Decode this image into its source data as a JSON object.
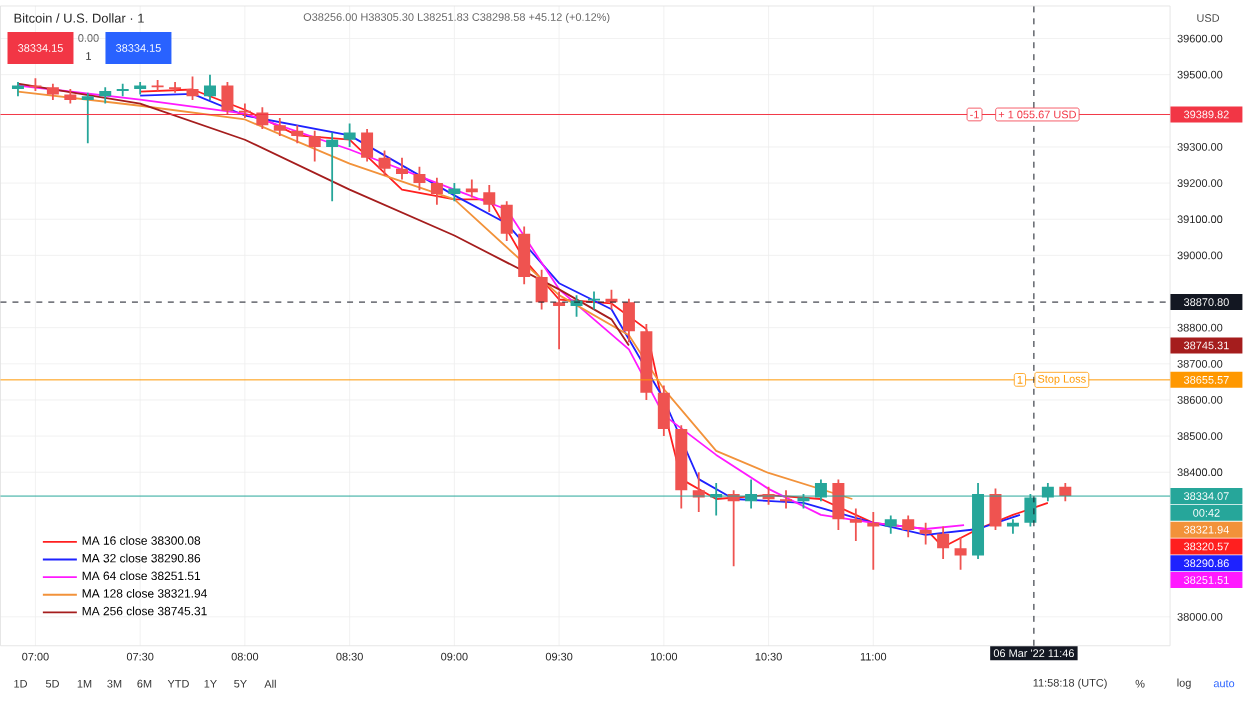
{
  "chart_data": {
    "type": "candlestick",
    "title": "Bitcoin / U.S. Dollar · 1",
    "x": [
      "2022-03-06T06:55",
      "2022-03-06T07:00",
      "2022-03-06T07:05",
      "2022-03-06T07:10",
      "2022-03-06T07:15",
      "2022-03-06T07:20",
      "2022-03-06T07:25",
      "2022-03-06T07:30",
      "2022-03-06T07:35",
      "2022-03-06T07:40",
      "2022-03-06T07:45",
      "2022-03-06T07:50",
      "2022-03-06T07:55",
      "2022-03-06T08:00",
      "2022-03-06T08:05",
      "2022-03-06T08:10",
      "2022-03-06T08:15",
      "2022-03-06T08:20",
      "2022-03-06T08:25",
      "2022-03-06T08:30",
      "2022-03-06T08:35",
      "2022-03-06T08:40",
      "2022-03-06T08:45",
      "2022-03-06T08:50",
      "2022-03-06T08:55",
      "2022-03-06T09:00",
      "2022-03-06T09:05",
      "2022-03-06T09:10",
      "2022-03-06T09:15",
      "2022-03-06T09:20",
      "2022-03-06T09:25",
      "2022-03-06T09:30",
      "2022-03-06T09:35",
      "2022-03-06T09:40",
      "2022-03-06T09:45",
      "2022-03-06T09:50",
      "2022-03-06T09:55",
      "2022-03-06T10:00",
      "2022-03-06T10:05",
      "2022-03-06T10:10",
      "2022-03-06T10:15",
      "2022-03-06T10:20",
      "2022-03-06T10:25",
      "2022-03-06T10:30",
      "2022-03-06T10:35",
      "2022-03-06T10:40",
      "2022-03-06T10:45",
      "2022-03-06T10:50",
      "2022-03-06T10:55",
      "2022-03-06T11:00",
      "2022-03-06T11:05",
      "2022-03-06T11:10",
      "2022-03-06T11:15",
      "2022-03-06T11:20",
      "2022-03-06T11:25",
      "2022-03-06T11:30",
      "2022-03-06T11:35",
      "2022-03-06T11:40",
      "2022-03-06T11:45",
      "2022-03-06T11:50",
      "2022-03-06T11:55"
    ],
    "ohlc": [
      [
        39460,
        39480,
        39440,
        39470
      ],
      [
        39470,
        39490,
        39455,
        39465
      ],
      [
        39465,
        39475,
        39430,
        39445
      ],
      [
        39445,
        39460,
        39420,
        39430
      ],
      [
        39430,
        39450,
        39310,
        39440
      ],
      [
        39440,
        39465,
        39420,
        39455
      ],
      [
        39455,
        39475,
        39440,
        39460
      ],
      [
        39460,
        39480,
        39445,
        39470
      ],
      [
        39470,
        39485,
        39455,
        39465
      ],
      [
        39465,
        39480,
        39450,
        39460
      ],
      [
        39460,
        39495,
        39430,
        39440
      ],
      [
        39440,
        39500,
        39430,
        39470
      ],
      [
        39470,
        39480,
        39390,
        39400
      ],
      [
        39400,
        39420,
        39380,
        39395
      ],
      [
        39395,
        39410,
        39350,
        39360
      ],
      [
        39360,
        39380,
        39330,
        39345
      ],
      [
        39345,
        39360,
        39310,
        39330
      ],
      [
        39330,
        39345,
        39260,
        39300
      ],
      [
        39300,
        39340,
        39150,
        39320
      ],
      [
        39320,
        39365,
        39300,
        39340
      ],
      [
        39340,
        39350,
        39260,
        39270
      ],
      [
        39270,
        39290,
        39220,
        39240
      ],
      [
        39240,
        39270,
        39210,
        39225
      ],
      [
        39225,
        39245,
        39180,
        39200
      ],
      [
        39200,
        39215,
        39140,
        39170
      ],
      [
        39170,
        39200,
        39150,
        39185
      ],
      [
        39185,
        39210,
        39160,
        39175
      ],
      [
        39175,
        39195,
        39120,
        39140
      ],
      [
        39140,
        39150,
        39040,
        39060
      ],
      [
        39060,
        39080,
        38920,
        38940
      ],
      [
        38940,
        38960,
        38850,
        38870
      ],
      [
        38870,
        38900,
        38740,
        38860
      ],
      [
        38860,
        38890,
        38830,
        38875
      ],
      [
        38875,
        38900,
        38850,
        38880
      ],
      [
        38880,
        38905,
        38850,
        38870
      ],
      [
        38870,
        38880,
        38760,
        38790
      ],
      [
        38790,
        38810,
        38600,
        38620
      ],
      [
        38620,
        38640,
        38500,
        38520
      ],
      [
        38520,
        38530,
        38300,
        38350
      ],
      [
        38350,
        38400,
        38290,
        38330
      ],
      [
        38330,
        38370,
        38280,
        38340
      ],
      [
        38340,
        38350,
        38140,
        38320
      ],
      [
        38320,
        38380,
        38300,
        38340
      ],
      [
        38340,
        38360,
        38310,
        38325
      ],
      [
        38325,
        38350,
        38300,
        38320
      ],
      [
        38320,
        38340,
        38300,
        38330
      ],
      [
        38330,
        38380,
        38320,
        38370
      ],
      [
        38370,
        38380,
        38240,
        38270
      ],
      [
        38270,
        38300,
        38210,
        38260
      ],
      [
        38260,
        38290,
        38130,
        38250
      ],
      [
        38250,
        38280,
        38230,
        38270
      ],
      [
        38270,
        38280,
        38220,
        38240
      ],
      [
        38240,
        38260,
        38200,
        38230
      ],
      [
        38230,
        38250,
        38160,
        38190
      ],
      [
        38190,
        38220,
        38130,
        38170
      ],
      [
        38170,
        38370,
        38160,
        38340
      ],
      [
        38340,
        38355,
        38240,
        38250
      ],
      [
        38250,
        38270,
        38230,
        38260
      ],
      [
        38260,
        38340,
        38250,
        38330
      ],
      [
        38330,
        38370,
        38320,
        38360
      ],
      [
        38360,
        38370,
        38320,
        38334.07
      ]
    ],
    "series": [
      {
        "name": "MA 16 close 38300.08",
        "type": "line",
        "color": "#ff1f1f",
        "x": [
          "2022-03-06T07:30",
          "2022-03-06T07:45",
          "2022-03-06T08:00",
          "2022-03-06T08:15",
          "2022-03-06T08:30",
          "2022-03-06T08:45",
          "2022-03-06T09:00",
          "2022-03-06T09:10",
          "2022-03-06T09:20",
          "2022-03-06T09:30",
          "2022-03-06T09:45",
          "2022-03-06T09:55",
          "2022-03-06T10:00",
          "2022-03-06T10:05",
          "2022-03-06T10:15",
          "2022-03-06T10:30",
          "2022-03-06T10:45",
          "2022-03-06T11:00",
          "2022-03-06T11:15",
          "2022-03-06T11:20",
          "2022-03-06T11:30",
          "2022-03-06T11:40",
          "2022-03-06T11:50"
        ],
        "values": [
          39453,
          39459,
          39403,
          39332,
          39320,
          39182,
          39155,
          39155,
          38989,
          38878,
          38867,
          38796,
          38575,
          38381,
          38326,
          38337,
          38326,
          38260,
          38243,
          38193,
          38243,
          38282,
          38315
        ]
      },
      {
        "name": "MA 32 close 38290.86",
        "type": "line",
        "color": "#1e22ff",
        "x": [
          "2022-03-06T07:30",
          "2022-03-06T07:45",
          "2022-03-06T08:00",
          "2022-03-06T08:30",
          "2022-03-06T09:00",
          "2022-03-06T09:15",
          "2022-03-06T09:30",
          "2022-03-06T09:45",
          "2022-03-06T10:00",
          "2022-03-06T10:10",
          "2022-03-06T10:20",
          "2022-03-06T10:40",
          "2022-03-06T11:00",
          "2022-03-06T11:15",
          "2022-03-06T11:30",
          "2022-03-06T11:42"
        ],
        "values": [
          39442,
          39447,
          39387,
          39332,
          39166,
          39088,
          38923,
          38851,
          38602,
          38381,
          38326,
          38315,
          38260,
          38227,
          38243,
          38282
        ]
      },
      {
        "name": "MA 64 close 38251.51",
        "type": "line",
        "color": "#ff19ff",
        "x": [
          "2022-03-06T06:55",
          "2022-03-06T07:30",
          "2022-03-06T08:00",
          "2022-03-06T08:30",
          "2022-03-06T09:00",
          "2022-03-06T09:15",
          "2022-03-06T09:30",
          "2022-03-06T09:50",
          "2022-03-06T10:00",
          "2022-03-06T10:15",
          "2022-03-06T10:30",
          "2022-03-06T10:45",
          "2022-03-06T11:00",
          "2022-03-06T11:15",
          "2022-03-06T11:26"
        ],
        "values": [
          39470,
          39431,
          39392,
          39293,
          39182,
          39127,
          38906,
          38740,
          38558,
          38448,
          38354,
          38282,
          38260,
          38243,
          38254
        ]
      },
      {
        "name": "MA 128 close 38321.94",
        "type": "line",
        "color": "#f2923a",
        "x": [
          "2022-03-06T06:55",
          "2022-03-06T07:30",
          "2022-03-06T08:00",
          "2022-03-06T08:30",
          "2022-03-06T09:00",
          "2022-03-06T09:30",
          "2022-03-06T09:50",
          "2022-03-06T10:00",
          "2022-03-06T10:15",
          "2022-03-06T10:30",
          "2022-03-06T10:54"
        ],
        "values": [
          39453,
          39414,
          39376,
          39254,
          39155,
          38890,
          38779,
          38630,
          38459,
          38398,
          38326
        ]
      },
      {
        "name": "MA 256 close 38745.31",
        "type": "line",
        "color": "#a51d1d",
        "x": [
          "2022-03-06T06:55",
          "2022-03-06T07:30",
          "2022-03-06T08:00",
          "2022-03-06T08:30",
          "2022-03-06T09:00",
          "2022-03-06T09:30",
          "2022-03-06T09:45",
          "2022-03-06T09:50"
        ],
        "values": [
          39475,
          39420,
          39320,
          39182,
          39055,
          38906,
          38823,
          38751
        ]
      }
    ],
    "xlim": [
      "2022-03-06T06:50",
      "2022-03-06T12:25"
    ],
    "xticks": [
      {
        "value": "2022-03-06T07:00",
        "label": "07:00"
      },
      {
        "value": "2022-03-06T07:30",
        "label": "07:30"
      },
      {
        "value": "2022-03-06T08:00",
        "label": "08:00"
      },
      {
        "value": "2022-03-06T08:30",
        "label": "08:30"
      },
      {
        "value": "2022-03-06T09:00",
        "label": "09:00"
      },
      {
        "value": "2022-03-06T09:30",
        "label": "09:30"
      },
      {
        "value": "2022-03-06T10:00",
        "label": "10:00"
      },
      {
        "value": "2022-03-06T10:30",
        "label": "10:30"
      },
      {
        "value": "2022-03-06T11:00",
        "label": "11:00"
      }
    ],
    "ylim": [
      37920,
      39690
    ],
    "yticks": [
      {
        "value": 38000,
        "label": "38000.00"
      },
      {
        "value": 38400,
        "label": "38400.00"
      },
      {
        "value": 38500,
        "label": "38500.00"
      },
      {
        "value": 38600,
        "label": "38600.00"
      },
      {
        "value": 38700,
        "label": "38700.00"
      },
      {
        "value": 38800,
        "label": "38800.00"
      },
      {
        "value": 39000,
        "label": "39000.00"
      },
      {
        "value": 39100,
        "label": "39100.00"
      },
      {
        "value": 39200,
        "label": "39200.00"
      },
      {
        "value": 39300,
        "label": "39300.00"
      },
      {
        "value": 39500,
        "label": "39500.00"
      },
      {
        "value": 39600,
        "label": "39600.00"
      }
    ],
    "grid": true,
    "legend": "bottom left",
    "ref_lines": [
      {
        "axis": "y",
        "value": 39389.82,
        "label": "39389.82",
        "color": "#f23645"
      },
      {
        "axis": "y",
        "value": 38870.8,
        "label": "38870.80",
        "color": "#131722",
        "line_style": "dashed"
      },
      {
        "axis": "y",
        "value": 38655.57,
        "label": "38655.57",
        "color": "#ff9800"
      },
      {
        "axis": "y",
        "value": 38334.07,
        "label": "38334.07",
        "color": "#26a69a"
      },
      {
        "axis": "x",
        "value": "2022-03-06T11:46",
        "label": "06 Mar '22 11:46",
        "color": "#131722",
        "line_style": "dashed"
      }
    ],
    "annotations": [
      "O38256.00 H38305.30 L38251.83 C38298.58 +45.12 (+0.12%)",
      "38334.15",
      "0.00",
      "1",
      "38334.15",
      "00:42",
      "38745.31",
      "38321.94",
      "38320.57",
      "38290.86",
      "38251.51",
      "USD",
      "1D",
      "5D",
      "1M",
      "3M",
      "6M",
      "YTD",
      "1Y",
      "5Y",
      "All",
      "11:58:18 (UTC)",
      "%",
      "log",
      "auto",
      {
        "text": "-1",
        "x": "2022-03-06T11:29",
        "y": 39389.82
      },
      {
        "text": "+ 1 055.67 USD",
        "x": "2022-03-06T11:47",
        "y": 39389.82
      },
      {
        "text": "1",
        "x": "2022-03-06T11:42",
        "y": 38655.57
      },
      {
        "text": "Stop Loss",
        "x": "2022-03-06T11:54",
        "y": 38655.57
      }
    ]
  }
}
